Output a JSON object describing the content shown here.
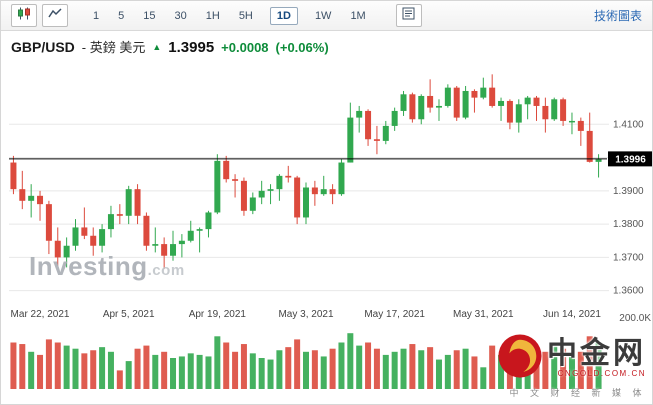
{
  "toolbar": {
    "timeframes": [
      "1",
      "5",
      "15",
      "30",
      "1H",
      "5H",
      "1D",
      "1W",
      "1M"
    ],
    "selected_timeframe": "1D",
    "tech_chart_link": "技術圖表"
  },
  "header": {
    "symbol": "GBP/USD",
    "pair_name": "- 英鎊 美元",
    "up_arrow": "▲",
    "last_price": "1.3995",
    "change": "+0.0008",
    "change_percent": "(+0.06%)"
  },
  "watermark": {
    "brand": "Investing",
    "suffix": ".com"
  },
  "logo_overlay": {
    "name": "中金网",
    "domain": "CNGOLD.COM.CN",
    "tagline": "中 文 财 经 新 媒 体"
  },
  "colors": {
    "up": "#31a84f",
    "down": "#dc4a3d",
    "grid": "#e8e8e8",
    "price_line": "#000000",
    "axis_text": "#555555",
    "date_text": "#444444"
  },
  "chart_data": {
    "type": "candlestick",
    "title": "GBP/USD 英鎊 美元",
    "timeframe": "1D",
    "y_ticks": [
      "1.4100",
      "1.4000",
      "1.3900",
      "1.3800",
      "1.3700",
      "1.3600"
    ],
    "y_range": [
      1.356,
      1.426
    ],
    "current_price_line": {
      "value": 1.3996,
      "label": "1.3996"
    },
    "volume_axis_label": "200.0K",
    "volume_max": 200000,
    "volume_unit": "K",
    "x_axis_labels": [
      {
        "index": 3,
        "label": "Mar 22, 2021"
      },
      {
        "index": 13,
        "label": "Apr 5, 2021"
      },
      {
        "index": 23,
        "label": "Apr 19, 2021"
      },
      {
        "index": 33,
        "label": "May 3, 2021"
      },
      {
        "index": 43,
        "label": "May 17, 2021"
      },
      {
        "index": 53,
        "label": "May 31, 2021"
      },
      {
        "index": 63,
        "label": "Jun 14, 2021"
      }
    ],
    "dates": [
      "Mar 17",
      "Mar 18",
      "Mar 19",
      "Mar 22",
      "Mar 23",
      "Mar 24",
      "Mar 25",
      "Mar 26",
      "Mar 29",
      "Mar 30",
      "Mar 31",
      "Apr 1",
      "Apr 2",
      "Apr 5",
      "Apr 6",
      "Apr 7",
      "Apr 8",
      "Apr 9",
      "Apr 12",
      "Apr 13",
      "Apr 14",
      "Apr 15",
      "Apr 16",
      "Apr 19",
      "Apr 20",
      "Apr 21",
      "Apr 22",
      "Apr 23",
      "Apr 26",
      "Apr 27",
      "Apr 28",
      "Apr 29",
      "Apr 30",
      "May 3",
      "May 4",
      "May 5",
      "May 6",
      "May 7",
      "May 10",
      "May 11",
      "May 12",
      "May 13",
      "May 14",
      "May 17",
      "May 18",
      "May 19",
      "May 20",
      "May 21",
      "May 24",
      "May 25",
      "May 26",
      "May 27",
      "May 28",
      "May 31",
      "Jun 1",
      "Jun 2",
      "Jun 3",
      "Jun 4",
      "Jun 7",
      "Jun 8",
      "Jun 9",
      "Jun 10",
      "Jun 11",
      "Jun 14",
      "Jun 15",
      "Jun 16",
      "Jun 17"
    ],
    "candles_ohlcv": [
      [
        1.3985,
        1.4005,
        1.389,
        1.3905,
        150
      ],
      [
        1.3905,
        1.396,
        1.3845,
        1.387,
        145
      ],
      [
        1.387,
        1.392,
        1.382,
        1.3885,
        120
      ],
      [
        1.3885,
        1.39,
        1.381,
        1.386,
        110
      ],
      [
        1.386,
        1.387,
        1.371,
        1.375,
        160
      ],
      [
        1.375,
        1.379,
        1.3675,
        1.37,
        150
      ],
      [
        1.37,
        1.376,
        1.367,
        1.3735,
        140
      ],
      [
        1.3735,
        1.3815,
        1.372,
        1.379,
        130
      ],
      [
        1.379,
        1.385,
        1.3755,
        1.3765,
        115
      ],
      [
        1.3765,
        1.379,
        1.3705,
        1.3735,
        125
      ],
      [
        1.3735,
        1.38,
        1.3715,
        1.3785,
        135
      ],
      [
        1.3785,
        1.3855,
        1.376,
        1.383,
        120
      ],
      [
        1.383,
        1.386,
        1.38,
        1.3825,
        60
      ],
      [
        1.3825,
        1.3915,
        1.38,
        1.3905,
        90
      ],
      [
        1.3905,
        1.392,
        1.38,
        1.3825,
        130
      ],
      [
        1.3825,
        1.3835,
        1.372,
        1.3735,
        140
      ],
      [
        1.3735,
        1.379,
        1.3715,
        1.374,
        110
      ],
      [
        1.374,
        1.376,
        1.3665,
        1.3705,
        120
      ],
      [
        1.3705,
        1.378,
        1.369,
        1.374,
        100
      ],
      [
        1.374,
        1.377,
        1.37,
        1.375,
        105
      ],
      [
        1.375,
        1.381,
        1.3745,
        1.378,
        115
      ],
      [
        1.378,
        1.379,
        1.3715,
        1.3785,
        110
      ],
      [
        1.3785,
        1.384,
        1.376,
        1.3835,
        105
      ],
      [
        1.3835,
        1.401,
        1.383,
        1.399,
        170
      ],
      [
        1.399,
        1.4005,
        1.3925,
        1.3935,
        150
      ],
      [
        1.3935,
        1.395,
        1.388,
        1.393,
        120
      ],
      [
        1.393,
        1.394,
        1.3825,
        1.384,
        145
      ],
      [
        1.384,
        1.3895,
        1.383,
        1.388,
        115
      ],
      [
        1.388,
        1.393,
        1.386,
        1.39,
        100
      ],
      [
        1.39,
        1.392,
        1.386,
        1.3905,
        95
      ],
      [
        1.3905,
        1.395,
        1.387,
        1.3945,
        125
      ],
      [
        1.3945,
        1.3975,
        1.3925,
        1.394,
        135
      ],
      [
        1.394,
        1.3945,
        1.38,
        1.382,
        160
      ],
      [
        1.382,
        1.3925,
        1.38,
        1.391,
        120
      ],
      [
        1.391,
        1.393,
        1.3855,
        1.389,
        125
      ],
      [
        1.389,
        1.3945,
        1.3885,
        1.3905,
        105
      ],
      [
        1.3905,
        1.392,
        1.386,
        1.389,
        130
      ],
      [
        1.389,
        1.3995,
        1.3885,
        1.3985,
        150
      ],
      [
        1.3985,
        1.4165,
        1.3985,
        1.412,
        180
      ],
      [
        1.412,
        1.4155,
        1.4075,
        1.414,
        140
      ],
      [
        1.414,
        1.4145,
        1.4035,
        1.4055,
        150
      ],
      [
        1.4055,
        1.4095,
        1.401,
        1.405,
        130
      ],
      [
        1.405,
        1.411,
        1.404,
        1.4095,
        110
      ],
      [
        1.4095,
        1.415,
        1.408,
        1.414,
        120
      ],
      [
        1.414,
        1.42,
        1.4125,
        1.419,
        130
      ],
      [
        1.419,
        1.4195,
        1.4105,
        1.4115,
        145
      ],
      [
        1.4115,
        1.419,
        1.41,
        1.4185,
        125
      ],
      [
        1.4185,
        1.4235,
        1.4135,
        1.415,
        135
      ],
      [
        1.415,
        1.4175,
        1.411,
        1.4155,
        95
      ],
      [
        1.4155,
        1.422,
        1.415,
        1.421,
        110
      ],
      [
        1.421,
        1.4215,
        1.411,
        1.412,
        125
      ],
      [
        1.412,
        1.4215,
        1.4115,
        1.42,
        130
      ],
      [
        1.42,
        1.4205,
        1.4135,
        1.418,
        105
      ],
      [
        1.418,
        1.424,
        1.4175,
        1.421,
        70
      ],
      [
        1.421,
        1.425,
        1.415,
        1.4155,
        140
      ],
      [
        1.4155,
        1.418,
        1.411,
        1.417,
        110
      ],
      [
        1.417,
        1.4175,
        1.4085,
        1.4105,
        135
      ],
      [
        1.4105,
        1.4175,
        1.4075,
        1.416,
        150
      ],
      [
        1.416,
        1.4185,
        1.4115,
        1.418,
        100
      ],
      [
        1.418,
        1.4185,
        1.411,
        1.4155,
        115
      ],
      [
        1.4155,
        1.418,
        1.4075,
        1.4115,
        120
      ],
      [
        1.4115,
        1.418,
        1.411,
        1.4175,
        140
      ],
      [
        1.4175,
        1.418,
        1.4095,
        1.411,
        130
      ],
      [
        1.411,
        1.4135,
        1.407,
        1.411,
        105
      ],
      [
        1.411,
        1.412,
        1.4035,
        1.408,
        120
      ],
      [
        1.408,
        1.4135,
        1.3985,
        1.3987,
        170
      ],
      [
        1.3987,
        1.401,
        1.394,
        1.3995,
        150
      ]
    ]
  }
}
